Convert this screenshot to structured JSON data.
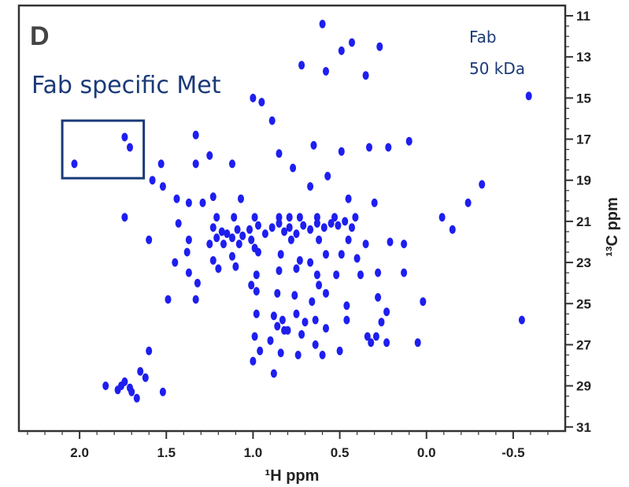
{
  "chart_data": {
    "type": "scatter",
    "panel_label": "D",
    "title": "",
    "xlabel": "¹H ppm",
    "ylabel": "¹³C ppm",
    "xlim": [
      2.35,
      -0.8
    ],
    "ylim": [
      10.5,
      31.2
    ],
    "x_reversed": true,
    "y_reversed": true,
    "x_ticks": [
      2.0,
      1.5,
      1.0,
      0.5,
      0.0,
      -0.5
    ],
    "x_tick_labels": [
      "2.0",
      "1.5",
      "1.0",
      "0.5",
      "0.0",
      "-0.5"
    ],
    "y_ticks": [
      11,
      13,
      15,
      17,
      19,
      21,
      23,
      25,
      27,
      29,
      31
    ],
    "y_tick_labels": [
      "11",
      "13",
      "15",
      "17",
      "19",
      "21",
      "23",
      "25",
      "27",
      "29",
      "31"
    ],
    "grid": false,
    "peak_color": "#1e1ef0",
    "annotations": {
      "region_label": "Fab specific Met",
      "sample_name": "Fab",
      "sample_mass": "50 kDa",
      "box_color": "#1a3a78",
      "box_region": {
        "x": [
          2.1,
          1.63
        ],
        "y": [
          16.1,
          18.9
        ]
      }
    },
    "series": [
      {
        "points": [
          [
            0.6,
            11.4
          ],
          [
            0.43,
            12.3
          ],
          [
            0.49,
            12.7
          ],
          [
            0.27,
            12.5
          ],
          [
            0.72,
            13.4
          ],
          [
            0.58,
            13.7
          ],
          [
            0.35,
            13.9
          ],
          [
            1.0,
            15.0
          ],
          [
            0.95,
            15.2
          ],
          [
            0.89,
            16.1
          ],
          [
            -0.59,
            14.9
          ],
          [
            1.74,
            16.9
          ],
          [
            1.71,
            17.4
          ],
          [
            2.03,
            18.2
          ],
          [
            1.33,
            16.8
          ],
          [
            1.53,
            18.2
          ],
          [
            1.33,
            18.2
          ],
          [
            1.25,
            17.8
          ],
          [
            1.12,
            18.2
          ],
          [
            0.85,
            17.7
          ],
          [
            0.65,
            17.3
          ],
          [
            0.49,
            17.6
          ],
          [
            0.33,
            17.4
          ],
          [
            0.22,
            17.4
          ],
          [
            0.1,
            17.1
          ],
          [
            0.77,
            18.4
          ],
          [
            1.58,
            19.0
          ],
          [
            1.52,
            19.3
          ],
          [
            1.44,
            19.9
          ],
          [
            1.37,
            20.1
          ],
          [
            1.29,
            20.1
          ],
          [
            1.23,
            19.8
          ],
          [
            1.07,
            19.9
          ],
          [
            0.67,
            19.3
          ],
          [
            0.57,
            18.8
          ],
          [
            0.45,
            19.9
          ],
          [
            0.3,
            20.1
          ],
          [
            -0.32,
            19.2
          ],
          [
            -0.24,
            20.1
          ],
          [
            1.74,
            20.8
          ],
          [
            1.21,
            20.8
          ],
          [
            1.11,
            20.8
          ],
          [
            0.99,
            20.8
          ],
          [
            0.85,
            20.8
          ],
          [
            0.79,
            20.8
          ],
          [
            0.73,
            20.8
          ],
          [
            0.63,
            20.8
          ],
          [
            0.53,
            20.8
          ],
          [
            0.41,
            20.8
          ],
          [
            -0.09,
            20.8
          ],
          [
            1.23,
            21.3
          ],
          [
            1.21,
            21.8
          ],
          [
            1.18,
            21.5
          ],
          [
            1.15,
            21.6
          ],
          [
            1.12,
            21.8
          ],
          [
            1.09,
            21.4
          ],
          [
            1.06,
            21.7
          ],
          [
            1.02,
            21.4
          ],
          [
            0.97,
            21.2
          ],
          [
            0.93,
            21.6
          ],
          [
            0.89,
            21.3
          ],
          [
            0.85,
            21.1
          ],
          [
            0.82,
            21.5
          ],
          [
            0.79,
            21.3
          ],
          [
            0.75,
            21.6
          ],
          [
            0.71,
            21.2
          ],
          [
            0.67,
            21.4
          ],
          [
            0.63,
            21.1
          ],
          [
            0.59,
            21.3
          ],
          [
            0.55,
            21.1
          ],
          [
            0.51,
            21.2
          ],
          [
            0.47,
            21.0
          ],
          [
            0.43,
            21.3
          ],
          [
            1.01,
            21.9
          ],
          [
            0.99,
            22.3
          ],
          [
            0.78,
            21.9
          ],
          [
            1.6,
            21.9
          ],
          [
            1.43,
            21.1
          ],
          [
            1.37,
            21.9
          ],
          [
            1.25,
            22.1
          ],
          [
            1.17,
            22.1
          ],
          [
            1.08,
            22.1
          ],
          [
            0.62,
            21.9
          ],
          [
            0.45,
            21.9
          ],
          [
            0.35,
            22.1
          ],
          [
            0.21,
            22.0
          ],
          [
            0.13,
            22.1
          ],
          [
            -0.15,
            21.4
          ],
          [
            1.38,
            22.5
          ],
          [
            1.23,
            22.9
          ],
          [
            1.12,
            22.7
          ],
          [
            0.97,
            22.5
          ],
          [
            0.84,
            22.6
          ],
          [
            0.73,
            22.9
          ],
          [
            0.67,
            23.0
          ],
          [
            0.58,
            22.6
          ],
          [
            0.49,
            22.6
          ],
          [
            0.4,
            22.8
          ],
          [
            1.45,
            23.0
          ],
          [
            1.37,
            23.5
          ],
          [
            1.2,
            23.3
          ],
          [
            1.1,
            23.2
          ],
          [
            0.98,
            23.6
          ],
          [
            0.85,
            23.4
          ],
          [
            0.75,
            23.3
          ],
          [
            0.63,
            23.6
          ],
          [
            0.52,
            23.6
          ],
          [
            0.38,
            23.6
          ],
          [
            0.28,
            23.5
          ],
          [
            0.13,
            23.5
          ],
          [
            1.32,
            24.0
          ],
          [
            0.62,
            24.1
          ],
          [
            1.49,
            24.8
          ],
          [
            1.33,
            24.8
          ],
          [
            1.01,
            24.1
          ],
          [
            0.98,
            24.4
          ],
          [
            0.86,
            24.5
          ],
          [
            0.76,
            24.6
          ],
          [
            0.66,
            24.9
          ],
          [
            0.58,
            24.5
          ],
          [
            0.46,
            25.1
          ],
          [
            0.28,
            24.7
          ],
          [
            0.23,
            25.4
          ],
          [
            0.02,
            24.9
          ],
          [
            0.98,
            25.5
          ],
          [
            0.88,
            25.6
          ],
          [
            0.86,
            26.1
          ],
          [
            0.83,
            25.8
          ],
          [
            0.8,
            26.3
          ],
          [
            0.75,
            25.5
          ],
          [
            0.7,
            25.9
          ],
          [
            0.64,
            25.8
          ],
          [
            0.58,
            26.2
          ],
          [
            0.46,
            25.8
          ],
          [
            0.26,
            25.9
          ],
          [
            0.29,
            26.6
          ],
          [
            0.23,
            26.9
          ],
          [
            -0.55,
            25.8
          ],
          [
            0.99,
            26.6
          ],
          [
            0.9,
            26.8
          ],
          [
            0.82,
            26.3
          ],
          [
            0.72,
            26.5
          ],
          [
            0.64,
            27.0
          ],
          [
            0.5,
            27.3
          ],
          [
            0.34,
            26.6
          ],
          [
            0.32,
            26.9
          ],
          [
            0.05,
            26.9
          ],
          [
            1.6,
            27.3
          ],
          [
            0.96,
            27.3
          ],
          [
            0.84,
            27.4
          ],
          [
            0.74,
            27.5
          ],
          [
            0.6,
            27.5
          ],
          [
            1.0,
            27.8
          ],
          [
            1.65,
            28.3
          ],
          [
            0.88,
            28.4
          ],
          [
            1.62,
            28.6
          ],
          [
            1.71,
            29.1
          ],
          [
            1.78,
            29.2
          ],
          [
            1.74,
            28.8
          ],
          [
            1.7,
            29.3
          ],
          [
            1.76,
            29.0
          ],
          [
            1.52,
            29.3
          ],
          [
            1.67,
            29.6
          ],
          [
            1.85,
            29.0
          ]
        ]
      }
    ]
  }
}
